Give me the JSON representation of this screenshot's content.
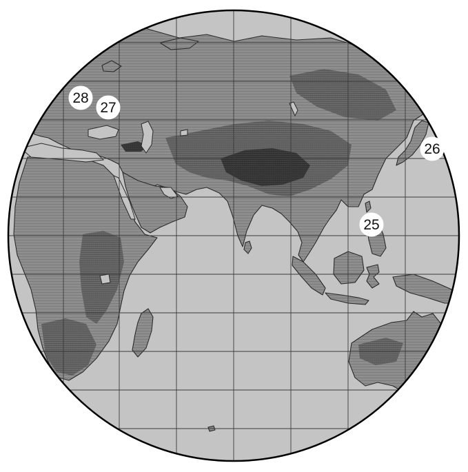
{
  "colors": {
    "ocean": "#c4c4c4",
    "land": "#8e8e8e",
    "highland": "#6a6a6a",
    "mountain": "#3e3e3e",
    "coastline": "#2a2a2a",
    "graticule": "#3a3a3a",
    "globe_border": "#000000",
    "marker_fill": "#ffffff",
    "marker_text": "#111111"
  },
  "markers": [
    {
      "id": "marker-28",
      "label": "28"
    },
    {
      "id": "marker-27",
      "label": "27"
    },
    {
      "id": "marker-26",
      "label": "26"
    },
    {
      "id": "marker-25",
      "label": "25"
    }
  ]
}
